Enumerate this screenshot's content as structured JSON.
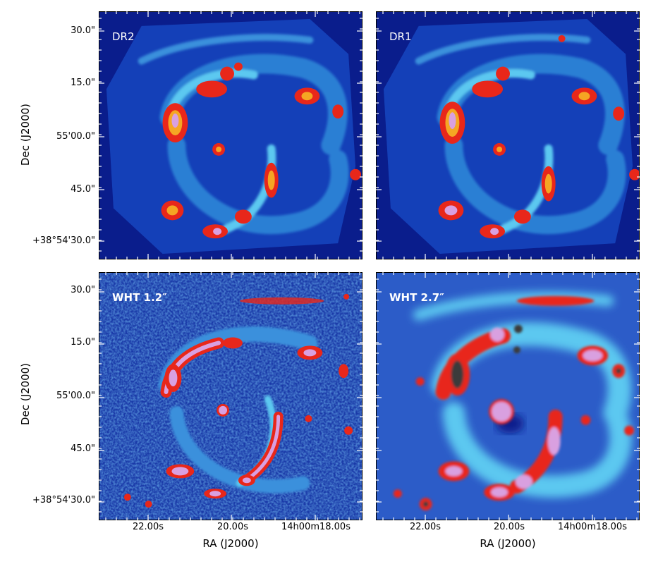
{
  "panels": [
    {
      "label": "DR2"
    },
    {
      "label": "DR1"
    },
    {
      "label": "WHT 1.2″"
    },
    {
      "label": "WHT 2.7″"
    }
  ],
  "axes": {
    "ylabel": "Dec (J2000)",
    "xlabel": "RA (J2000)",
    "yticks": [
      "30.0\"",
      "15.0\"",
      "55'00.0\"",
      "45.0\"",
      "+38°54'30.0\""
    ],
    "xticks": [
      "22.00s",
      "20.00s",
      "14h00m18.00s"
    ]
  },
  "colors": {
    "background": "#0a1d8c",
    "arm_mid": "#2a7fd4",
    "arm_light": "#5cc8f0",
    "hot": "#e8271a",
    "warm": "#f5a623",
    "peak": "#d9a0e0"
  }
}
